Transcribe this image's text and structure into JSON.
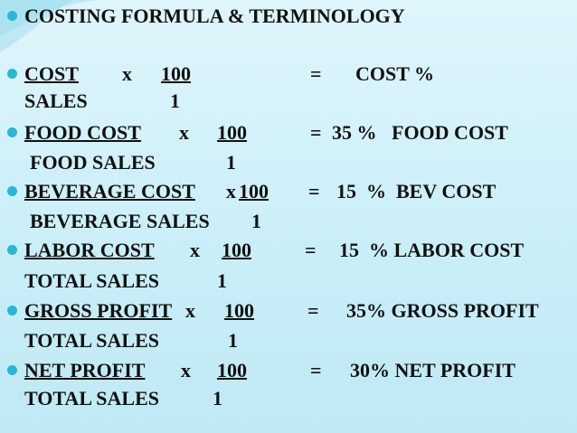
{
  "header": {
    "title": "COSTING FORMULA & TERMINOLOGY"
  },
  "formulas": [
    {
      "numerator": "COST",
      "times": "x",
      "multiplier": "100",
      "equals": "=",
      "result": "COST %",
      "denominator": "SALES",
      "divisor": "1"
    },
    {
      "numerator": "FOOD COST",
      "times": "x",
      "multiplier": "100",
      "equals": "=",
      "result": "35 %   FOOD COST",
      "denominator": "FOOD SALES",
      "divisor": "1"
    },
    {
      "numerator": "BEVERAGE COST",
      "times": "x",
      "multiplier": "100",
      "equals": "=",
      "result": "15  %  BEV COST",
      "denominator": "BEVERAGE SALES",
      "divisor": "1"
    },
    {
      "numerator": "LABOR COST",
      "times": "x",
      "multiplier": "100",
      "equals": "=",
      "result": "15  % LABOR COST",
      "denominator": "TOTAL SALES",
      "divisor": "1"
    },
    {
      "numerator": "GROSS PROFIT",
      "times": "x",
      "multiplier": "100",
      "equals": "=",
      "result": "35% GROSS PROFIT",
      "denominator": "TOTAL SALES",
      "divisor": "1"
    },
    {
      "numerator": "NET PROFIT",
      "times": "x",
      "multiplier": "100",
      "equals": "=",
      "result": "30% NET PROFIT",
      "denominator": "TOTAL SALES",
      "divisor": "1"
    }
  ]
}
